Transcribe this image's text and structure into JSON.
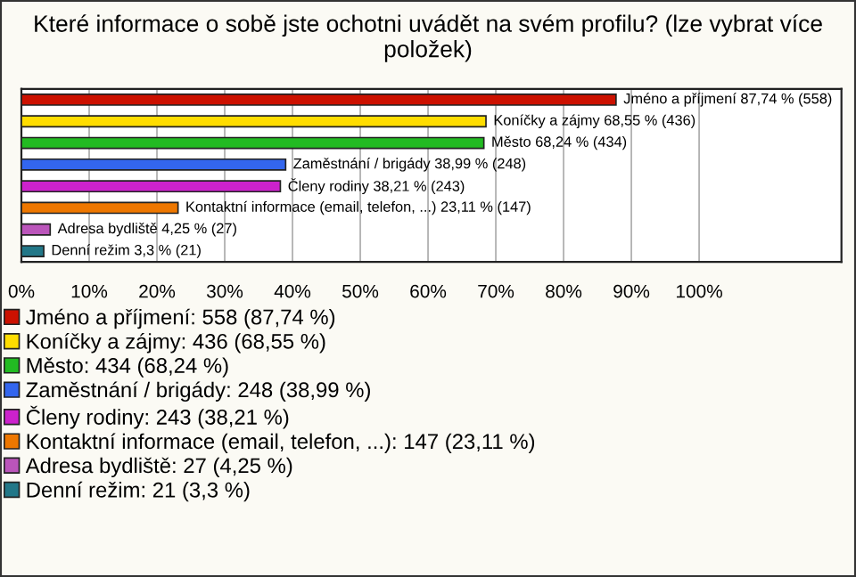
{
  "chart_data": {
    "type": "bar",
    "orientation": "horizontal",
    "title": "Které informace o sobě jste ochotni uvádět na svém profilu? (lze vybrat více položek)",
    "categories": [
      null,
      null,
      null,
      null,
      null,
      null,
      null,
      null
    ],
    "series": [
      {
        "name": "Jméno a příjmení: 558 (87,74 %)",
        "color": "#cc1100",
        "values": [
          87.74,
          null,
          null,
          null,
          null,
          null,
          null,
          null
        ],
        "value_labels": [
          "Jméno a příjmení 87,74 % (558)",
          null,
          null,
          null,
          null,
          null,
          null,
          null
        ]
      },
      {
        "name": "Koníčky a zájmy: 436 (68,55 %)",
        "color": "#ffdd00",
        "values": [
          null,
          68.55,
          null,
          null,
          null,
          null,
          null,
          null
        ],
        "value_labels": [
          null,
          "Koníčky a zájmy 68,55 % (436)",
          null,
          null,
          null,
          null,
          null,
          null
        ]
      },
      {
        "name": "Město: 434 (68,24 %)",
        "color": "#22bb22",
        "values": [
          null,
          null,
          68.24,
          null,
          null,
          null,
          null,
          null
        ],
        "value_labels": [
          null,
          null,
          "Město 68,24 % (434)",
          null,
          null,
          null,
          null,
          null
        ]
      },
      {
        "name": "Zaměstnání / brigády: 248 (38,99 %)",
        "color": "#3366ee",
        "values": [
          null,
          null,
          null,
          38.99,
          null,
          null,
          null,
          null
        ],
        "value_labels": [
          null,
          null,
          null,
          "Zaměstnání / brigády 38,99 % (248)",
          null,
          null,
          null,
          null
        ]
      },
      {
        "name": "Členy rodiny: 243 (38,21 %)",
        "color": "#cc22cc",
        "values": [
          null,
          null,
          null,
          null,
          38.21,
          null,
          null,
          null
        ],
        "value_labels": [
          null,
          null,
          null,
          null,
          "Členy rodiny 38,21 % (243)",
          null,
          null,
          null
        ]
      },
      {
        "name": "Kontaktní informace (email, telefon, ...): 147 (23,11 %)",
        "color": "#ee7700",
        "values": [
          null,
          null,
          null,
          null,
          null,
          23.11,
          null,
          null
        ],
        "value_labels": [
          null,
          null,
          null,
          null,
          null,
          "Kontaktní informace (email, telefon, ...) 23,11 % (147)",
          null,
          null
        ]
      },
      {
        "name": "Adresa bydliště: 27 (4,25 %)",
        "color": "#bb55bb",
        "values": [
          null,
          null,
          null,
          null,
          null,
          null,
          4.25,
          null
        ],
        "value_labels": [
          null,
          null,
          null,
          null,
          null,
          null,
          "Adresa bydliště 4,25 % (27)",
          null
        ]
      },
      {
        "name": "Denní režim: 21 (3,3 %)",
        "color": "#227788",
        "values": [
          null,
          null,
          null,
          null,
          null,
          null,
          null,
          3.3
        ],
        "value_labels": [
          null,
          null,
          null,
          null,
          null,
          null,
          null,
          "Denní režim 3,3 % (21)"
        ]
      }
    ],
    "xlim": [
      0,
      121
    ],
    "xticks": [
      {
        "value": 0,
        "label": "0%"
      },
      {
        "value": 10,
        "label": "10%"
      },
      {
        "value": 20,
        "label": "20%"
      },
      {
        "value": 30,
        "label": "30%"
      },
      {
        "value": 40,
        "label": "40%"
      },
      {
        "value": 50,
        "label": "50%"
      },
      {
        "value": 60,
        "label": "60%"
      },
      {
        "value": 70,
        "label": "70%"
      },
      {
        "value": 80,
        "label": "80%"
      },
      {
        "value": 90,
        "label": "90%"
      },
      {
        "value": 100,
        "label": "100%"
      }
    ],
    "grid": "x",
    "legend": "bottom"
  }
}
